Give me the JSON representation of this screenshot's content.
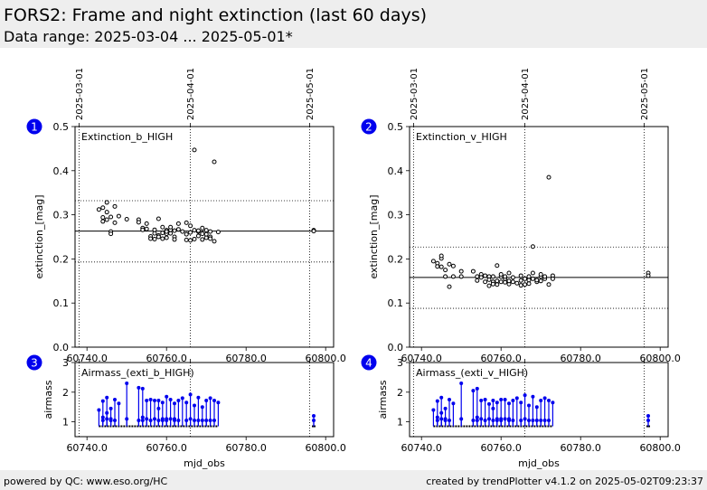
{
  "header": {
    "title": "FORS2: Frame and night extinction (last 60 days)",
    "subtitle": "Data range: 2025-03-04 ... 2025-05-01*"
  },
  "footer": {
    "left": "powered by QC: www.eso.org/HC",
    "right": "created by trendPlotter v4.1.2 on 2025-05-02T09:23:37"
  },
  "colors": {
    "accent": "#0000ee",
    "markers": "#000000",
    "header_bg": "#eeeeee"
  },
  "chart_data": [
    {
      "id": "1",
      "type": "scatter",
      "panel_label": "Extinction_b_HIGH",
      "ylabel": "extinction_[mag]",
      "xlabel": "",
      "xlim": [
        60737,
        60802
      ],
      "ylim": [
        0,
        0.5
      ],
      "yticks": [
        "0.0",
        "0.1",
        "0.2",
        "0.3",
        "0.4",
        "0.5"
      ],
      "xticks": [
        "60740.0",
        "60760.0",
        "60780.0",
        "60800.0"
      ],
      "date_ticks": [
        {
          "x": 60738,
          "label": "2025-03-01"
        },
        {
          "x": 60766,
          "label": "2025-04-01"
        },
        {
          "x": 60796,
          "label": "2025-05-01"
        }
      ],
      "median": 0.263,
      "upper_limit": 0.332,
      "lower_limit": 0.193,
      "x": [
        60743,
        60744,
        60744,
        60744,
        60745,
        60745,
        60745,
        60746,
        60746,
        60746,
        60747,
        60747,
        60748,
        60750,
        60753,
        60753,
        60754,
        60754,
        60755,
        60755,
        60756,
        60756,
        60757,
        60757,
        60757,
        60758,
        60758,
        60758,
        60759,
        60759,
        60759,
        60760,
        60760,
        60760,
        60760,
        60761,
        60761,
        60761,
        60762,
        60762,
        60762,
        60763,
        60763,
        60764,
        60765,
        60765,
        60765,
        60766,
        60766,
        60766,
        60767,
        60767,
        60767,
        60768,
        60768,
        60768,
        60769,
        60769,
        60769,
        60770,
        60770,
        60770,
        60771,
        60771,
        60771,
        60772,
        60772,
        60773,
        60797,
        60797
      ],
      "y": [
        0.312,
        0.294,
        0.285,
        0.316,
        0.328,
        0.306,
        0.289,
        0.262,
        0.257,
        0.295,
        0.319,
        0.282,
        0.297,
        0.29,
        0.289,
        0.283,
        0.27,
        0.266,
        0.268,
        0.28,
        0.251,
        0.246,
        0.258,
        0.245,
        0.266,
        0.253,
        0.291,
        0.25,
        0.259,
        0.246,
        0.272,
        0.257,
        0.265,
        0.248,
        0.262,
        0.258,
        0.266,
        0.272,
        0.25,
        0.244,
        0.264,
        0.28,
        0.267,
        0.262,
        0.256,
        0.243,
        0.282,
        0.26,
        0.275,
        0.242,
        0.245,
        0.265,
        0.447,
        0.262,
        0.252,
        0.264,
        0.257,
        0.244,
        0.27,
        0.248,
        0.265,
        0.256,
        0.25,
        0.246,
        0.262,
        0.42,
        0.24,
        0.261,
        0.265,
        0.263
      ]
    },
    {
      "id": "2",
      "type": "scatter",
      "panel_label": "Extinction_v_HIGH",
      "ylabel": "extinction_[mag]",
      "xlabel": "",
      "xlim": [
        60737,
        60802
      ],
      "ylim": [
        0,
        0.5
      ],
      "yticks": [
        "0.0",
        "0.1",
        "0.2",
        "0.3",
        "0.4",
        "0.5"
      ],
      "xticks": [
        "60740.0",
        "60760.0",
        "60780.0",
        "60800.0"
      ],
      "date_ticks": [
        {
          "x": 60738,
          "label": "2025-03-01"
        },
        {
          "x": 60766,
          "label": "2025-04-01"
        },
        {
          "x": 60796,
          "label": "2025-05-01"
        }
      ],
      "median": 0.158,
      "upper_limit": 0.227,
      "lower_limit": 0.088,
      "x": [
        60743,
        60744,
        60744,
        60745,
        60745,
        60745,
        60746,
        60746,
        60747,
        60747,
        60748,
        60748,
        60750,
        60750,
        60753,
        60754,
        60754,
        60755,
        60755,
        60756,
        60756,
        60757,
        60757,
        60757,
        60758,
        60758,
        60758,
        60759,
        60759,
        60759,
        60760,
        60760,
        60760,
        60761,
        60761,
        60761,
        60762,
        60762,
        60762,
        60763,
        60763,
        60764,
        60765,
        60765,
        60765,
        60766,
        60766,
        60767,
        60767,
        60767,
        60768,
        60768,
        60768,
        60769,
        60769,
        60770,
        60770,
        60770,
        60771,
        60771,
        60772,
        60772,
        60773,
        60773,
        60797,
        60797
      ],
      "y": [
        0.195,
        0.19,
        0.183,
        0.201,
        0.207,
        0.182,
        0.16,
        0.175,
        0.188,
        0.137,
        0.184,
        0.16,
        0.172,
        0.16,
        0.172,
        0.16,
        0.151,
        0.165,
        0.158,
        0.162,
        0.148,
        0.16,
        0.153,
        0.139,
        0.148,
        0.16,
        0.143,
        0.185,
        0.15,
        0.142,
        0.16,
        0.165,
        0.148,
        0.155,
        0.147,
        0.16,
        0.168,
        0.143,
        0.15,
        0.158,
        0.148,
        0.145,
        0.151,
        0.14,
        0.162,
        0.155,
        0.142,
        0.16,
        0.152,
        0.144,
        0.155,
        0.228,
        0.168,
        0.148,
        0.152,
        0.16,
        0.165,
        0.15,
        0.155,
        0.16,
        0.385,
        0.142,
        0.162,
        0.155,
        0.168,
        0.162
      ]
    },
    {
      "id": "3",
      "type": "scatter",
      "panel_label": "Airmass_(exti_b_HIGH)",
      "ylabel": "airmass",
      "xlabel": "mjd_obs",
      "xlim": [
        60737,
        60802
      ],
      "ylim": [
        0.5,
        3
      ],
      "yticks": [
        "1",
        "2",
        "3"
      ],
      "xticks": [
        "60740.0",
        "60760.0",
        "60780.0",
        "60800.0"
      ],
      "date_ticks": [
        {
          "x": 60738,
          "label": ""
        },
        {
          "x": 60766,
          "label": ""
        },
        {
          "x": 60796,
          "label": ""
        }
      ],
      "baseline": 0.85,
      "baseline_range": [
        60743,
        60773
      ],
      "x": [
        60743,
        60744,
        60744,
        60744,
        60745,
        60745,
        60745,
        60746,
        60746,
        60746,
        60747,
        60747,
        60748,
        60750,
        60750,
        60753,
        60753,
        60754,
        60754,
        60754,
        60755,
        60755,
        60756,
        60756,
        60757,
        60757,
        60758,
        60758,
        60758,
        60759,
        60759,
        60759,
        60760,
        60760,
        60760,
        60761,
        60761,
        60762,
        60762,
        60762,
        60763,
        60763,
        60764,
        60765,
        60765,
        60766,
        60766,
        60767,
        60767,
        60768,
        60768,
        60769,
        60769,
        60770,
        60770,
        60771,
        60771,
        60772,
        60772,
        60773,
        60797,
        60797
      ],
      "y": [
        1.4,
        1.15,
        1.7,
        1.05,
        1.82,
        1.1,
        1.3,
        1.45,
        1.05,
        1.1,
        1.75,
        1.05,
        1.62,
        2.3,
        1.1,
        2.15,
        1.05,
        2.12,
        1.15,
        1.05,
        1.72,
        1.1,
        1.75,
        1.05,
        1.72,
        1.1,
        1.45,
        1.05,
        1.72,
        1.65,
        1.1,
        1.05,
        1.85,
        1.1,
        1.05,
        1.75,
        1.1,
        1.62,
        1.05,
        1.1,
        1.72,
        1.05,
        1.8,
        1.65,
        1.05,
        1.92,
        1.1,
        1.55,
        1.05,
        1.82,
        1.05,
        1.5,
        1.05,
        1.72,
        1.05,
        1.8,
        1.05,
        1.72,
        1.05,
        1.65,
        1.2,
        1.05
      ]
    },
    {
      "id": "4",
      "type": "scatter",
      "panel_label": "Airmass_(exti_v_HIGH)",
      "ylabel": "airmass",
      "xlabel": "mjd_obs",
      "xlim": [
        60737,
        60802
      ],
      "ylim": [
        0.5,
        3
      ],
      "yticks": [
        "1",
        "2",
        "3"
      ],
      "xticks": [
        "60740.0",
        "60760.0",
        "60780.0",
        "60800.0"
      ],
      "date_ticks": [
        {
          "x": 60738,
          "label": ""
        },
        {
          "x": 60766,
          "label": ""
        },
        {
          "x": 60796,
          "label": ""
        }
      ],
      "baseline": 0.85,
      "baseline_range": [
        60743,
        60773
      ],
      "x": [
        60743,
        60744,
        60744,
        60744,
        60745,
        60745,
        60745,
        60746,
        60746,
        60746,
        60747,
        60747,
        60748,
        60750,
        60750,
        60753,
        60753,
        60754,
        60754,
        60754,
        60755,
        60755,
        60756,
        60756,
        60757,
        60757,
        60758,
        60758,
        60758,
        60759,
        60759,
        60759,
        60760,
        60760,
        60760,
        60761,
        60761,
        60762,
        60762,
        60762,
        60763,
        60763,
        60764,
        60765,
        60765,
        60766,
        60766,
        60767,
        60767,
        60768,
        60768,
        60769,
        60769,
        60770,
        60770,
        60771,
        60771,
        60772,
        60772,
        60773,
        60797,
        60797
      ],
      "y": [
        1.4,
        1.15,
        1.7,
        1.05,
        1.82,
        1.1,
        1.3,
        1.45,
        1.05,
        1.1,
        1.75,
        1.05,
        1.62,
        2.3,
        1.1,
        2.05,
        1.05,
        2.12,
        1.15,
        1.05,
        1.72,
        1.1,
        1.75,
        1.05,
        1.6,
        1.1,
        1.45,
        1.05,
        1.72,
        1.65,
        1.1,
        1.05,
        1.75,
        1.1,
        1.05,
        1.75,
        1.1,
        1.62,
        1.05,
        1.1,
        1.72,
        1.05,
        1.8,
        1.65,
        1.05,
        1.9,
        1.1,
        1.55,
        1.05,
        1.85,
        1.05,
        1.5,
        1.05,
        1.72,
        1.05,
        1.8,
        1.05,
        1.72,
        1.05,
        1.65,
        1.2,
        1.05
      ]
    }
  ]
}
